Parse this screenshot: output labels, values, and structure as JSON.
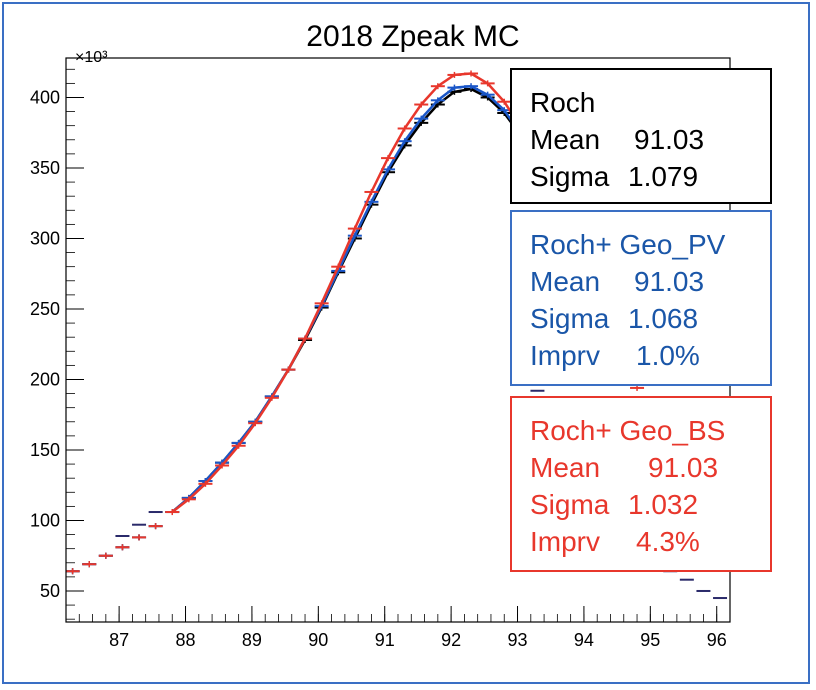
{
  "chart_data": {
    "type": "line",
    "title": "2018 Zpeak MC",
    "xlabel": "",
    "ylabel": "",
    "y_exponent_label": "×10³",
    "xlim": [
      86.2,
      96.2
    ],
    "ylim": [
      28,
      428
    ],
    "x_ticks": [
      87,
      88,
      89,
      90,
      91,
      92,
      93,
      94,
      95,
      96
    ],
    "y_ticks": [
      50,
      100,
      150,
      200,
      250,
      300,
      350,
      400
    ],
    "series": [
      {
        "name": "Roch",
        "color": "#000000",
        "x": [
          86.3,
          86.55,
          86.8,
          87.05,
          87.3,
          87.55,
          87.8,
          88.05,
          88.3,
          88.55,
          88.8,
          89.05,
          89.3,
          89.55,
          89.8,
          90.05,
          90.3,
          90.55,
          90.8,
          91.05,
          91.3,
          91.55,
          91.8,
          92.05,
          92.3,
          92.55,
          92.8,
          93.05,
          93.3,
          93.55,
          93.8,
          94.05,
          94.3,
          94.55,
          94.8,
          95.05,
          95.3,
          95.55,
          95.8,
          96.05
        ],
        "values": [
          64,
          69,
          75,
          81,
          88,
          96,
          106,
          116,
          128,
          141,
          155,
          170,
          188,
          207,
          228,
          251,
          276,
          300,
          324,
          347,
          366,
          382,
          395,
          404,
          406,
          400,
          389,
          373,
          353,
          330,
          305,
          279,
          254,
          229,
          205,
          182,
          161,
          142,
          126,
          112
        ]
      },
      {
        "name": "Roch+ Geo_PV",
        "color": "#1a56c8",
        "x": [
          86.3,
          86.55,
          86.8,
          87.05,
          87.3,
          87.55,
          87.8,
          88.05,
          88.3,
          88.55,
          88.8,
          89.05,
          89.3,
          89.55,
          89.8,
          90.05,
          90.3,
          90.55,
          90.8,
          91.05,
          91.3,
          91.55,
          91.8,
          92.05,
          92.3,
          92.55,
          92.8,
          93.05,
          93.3,
          93.55,
          93.8,
          94.05,
          94.3,
          94.55,
          94.8,
          95.05,
          95.3,
          95.55,
          95.8,
          96.05
        ],
        "values": [
          64,
          69,
          75,
          81,
          88,
          96,
          106,
          116,
          128,
          141,
          155,
          170,
          188,
          207,
          229,
          252,
          277,
          302,
          326,
          349,
          369,
          385,
          398,
          407,
          408,
          402,
          391,
          374,
          354,
          330,
          305,
          279,
          253,
          228,
          204,
          181,
          160,
          141,
          125,
          111
        ]
      },
      {
        "name": "Roch+ Geo_BS",
        "color": "#e8372c",
        "x": [
          86.3,
          86.55,
          86.8,
          87.05,
          87.3,
          87.55,
          87.8,
          88.05,
          88.3,
          88.55,
          88.8,
          89.05,
          89.3,
          89.55,
          89.8,
          90.05,
          90.3,
          90.55,
          90.8,
          91.05,
          91.3,
          91.55,
          91.8,
          92.05,
          92.3,
          92.55,
          92.8,
          93.05,
          93.3,
          93.55,
          93.8,
          94.05,
          94.3,
          94.55,
          94.8,
          95.05,
          95.3,
          95.55,
          95.8,
          96.05
        ],
        "values": [
          64,
          69,
          75,
          81,
          88,
          96,
          106,
          115,
          126,
          139,
          153,
          169,
          187,
          207,
          229,
          254,
          280,
          307,
          333,
          357,
          378,
          395,
          408,
          416,
          417,
          410,
          397,
          379,
          356,
          330,
          302,
          274,
          246,
          219,
          194,
          170,
          149,
          130,
          114,
          100
        ]
      }
    ],
    "fit_range": [
      87.6,
      93.2
    ],
    "tail_points": {
      "x": [
        87.05,
        87.3,
        87.55,
        93.3,
        95.3,
        95.55,
        95.8,
        96.05
      ],
      "values": [
        89,
        97,
        106,
        192,
        64,
        58,
        50,
        45
      ]
    }
  },
  "legend_boxes": {
    "roch": {
      "title": "Roch",
      "mean_label": "Mean",
      "mean_value": "91.03",
      "sigma_label": "Sigma",
      "sigma_value": "1.079"
    },
    "pv": {
      "title": "Roch+ Geo_PV",
      "mean_label": "Mean",
      "mean_value": "91.03",
      "sigma_label": "Sigma",
      "sigma_value": "1.068",
      "imprv_label": "Imprv",
      "imprv_value": "1.0%"
    },
    "bs": {
      "title": "Roch+ Geo_BS",
      "mean_label": "Mean",
      "mean_value": "91.03",
      "sigma_label": "Sigma",
      "sigma_value": "1.032",
      "imprv_label": "Imprv",
      "imprv_value": "4.3%"
    }
  }
}
